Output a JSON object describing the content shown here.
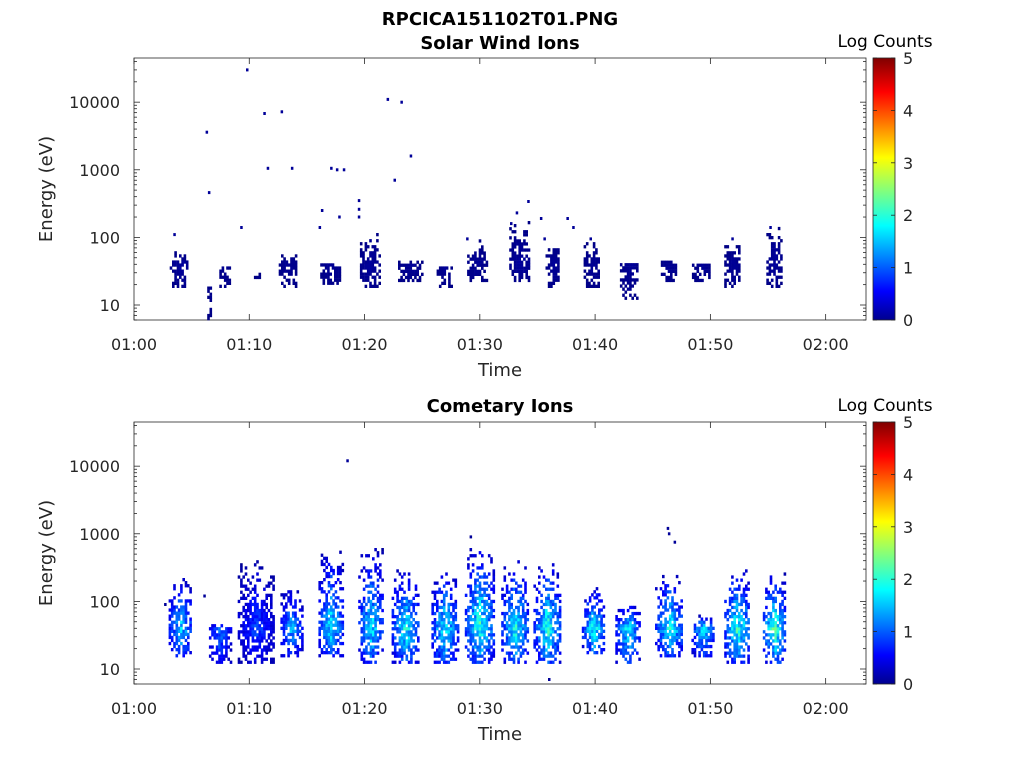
{
  "figure_title": "RPCICA151102T01.PNG",
  "chart_data": [
    {
      "type": "heatmap",
      "title": "Solar Wind Ions",
      "xlabel": "Time",
      "ylabel": "Energy (eV)",
      "x_ticks": [
        "01:00",
        "01:10",
        "01:20",
        "01:30",
        "01:40",
        "01:50",
        "02:00"
      ],
      "y_ticks": [
        "10",
        "100",
        "1000",
        "10000"
      ],
      "y_scale": "log",
      "ylim": [
        6,
        45000
      ],
      "xlim_minutes": [
        0,
        63.5
      ],
      "colorbar": {
        "label": "Log Counts",
        "ticks": [
          "0",
          "1",
          "2",
          "3",
          "4",
          "5"
        ],
        "range": [
          0,
          5
        ],
        "colormap": "jet"
      },
      "clusters": [
        {
          "t": 3.9,
          "w": 1.6,
          "lo": 18,
          "hi": 60,
          "peak": 0.15
        },
        {
          "t": 6.5,
          "w": 0.3,
          "lo": 6,
          "hi": 18,
          "peak": 0.1
        },
        {
          "t": 7.8,
          "w": 0.8,
          "lo": 18,
          "hi": 35,
          "peak": 0.12
        },
        {
          "t": 10.6,
          "w": 0.4,
          "lo": 22,
          "hi": 28,
          "peak": 0.1
        },
        {
          "t": 13.3,
          "w": 1.5,
          "lo": 18,
          "hi": 55,
          "peak": 0.12
        },
        {
          "t": 17.0,
          "w": 1.7,
          "lo": 20,
          "hi": 40,
          "peak": 0.12
        },
        {
          "t": 20.4,
          "w": 1.6,
          "lo": 18,
          "hi": 120,
          "peak": 0.15
        },
        {
          "t": 23.9,
          "w": 2.0,
          "lo": 22,
          "hi": 42,
          "peak": 0.12
        },
        {
          "t": 26.9,
          "w": 1.3,
          "lo": 18,
          "hi": 35,
          "peak": 0.12
        },
        {
          "t": 29.7,
          "w": 1.6,
          "lo": 22,
          "hi": 90,
          "peak": 0.12
        },
        {
          "t": 33.4,
          "w": 1.7,
          "lo": 22,
          "hi": 180,
          "peak": 0.15
        },
        {
          "t": 36.3,
          "w": 1.2,
          "lo": 18,
          "hi": 80,
          "peak": 0.12
        },
        {
          "t": 39.7,
          "w": 1.4,
          "lo": 18,
          "hi": 80,
          "peak": 0.12
        },
        {
          "t": 42.9,
          "w": 1.5,
          "lo": 12,
          "hi": 40,
          "peak": 0.12
        },
        {
          "t": 46.3,
          "w": 1.6,
          "lo": 22,
          "hi": 45,
          "peak": 0.12
        },
        {
          "t": 49.2,
          "w": 1.6,
          "lo": 22,
          "hi": 40,
          "peak": 0.12
        },
        {
          "t": 51.9,
          "w": 1.4,
          "lo": 18,
          "hi": 80,
          "peak": 0.12
        },
        {
          "t": 55.5,
          "w": 1.3,
          "lo": 18,
          "hi": 140,
          "peak": 0.15
        }
      ],
      "points": [
        {
          "t": 9.8,
          "e": 30000
        },
        {
          "t": 11.3,
          "e": 6800
        },
        {
          "t": 12.8,
          "e": 7200
        },
        {
          "t": 22.0,
          "e": 11000
        },
        {
          "t": 23.2,
          "e": 10000
        },
        {
          "t": 6.3,
          "e": 3600
        },
        {
          "t": 11.6,
          "e": 1050
        },
        {
          "t": 13.7,
          "e": 1050
        },
        {
          "t": 17.1,
          "e": 1050
        },
        {
          "t": 17.6,
          "e": 1000
        },
        {
          "t": 18.2,
          "e": 1000
        },
        {
          "t": 22.6,
          "e": 700
        },
        {
          "t": 24.0,
          "e": 1600
        },
        {
          "t": 6.5,
          "e": 460
        },
        {
          "t": 9.3,
          "e": 140
        },
        {
          "t": 3.5,
          "e": 110
        },
        {
          "t": 16.3,
          "e": 250
        },
        {
          "t": 17.8,
          "e": 200
        },
        {
          "t": 19.5,
          "e": 350
        },
        {
          "t": 19.5,
          "e": 260
        },
        {
          "t": 19.5,
          "e": 200
        },
        {
          "t": 33.2,
          "e": 230
        },
        {
          "t": 34.2,
          "e": 340
        },
        {
          "t": 35.3,
          "e": 190
        },
        {
          "t": 37.6,
          "e": 190
        },
        {
          "t": 28.9,
          "e": 95
        },
        {
          "t": 39.6,
          "e": 95
        },
        {
          "t": 51.9,
          "e": 95
        },
        {
          "t": 55.2,
          "e": 140
        },
        {
          "t": 16.1,
          "e": 140
        },
        {
          "t": 32.7,
          "e": 160
        },
        {
          "t": 38.1,
          "e": 140
        },
        {
          "t": 35.6,
          "e": 95
        }
      ]
    },
    {
      "type": "heatmap",
      "title": "Cometary Ions",
      "xlabel": "Time",
      "ylabel": "Energy (eV)",
      "x_ticks": [
        "01:00",
        "01:10",
        "01:20",
        "01:30",
        "01:40",
        "01:50",
        "02:00"
      ],
      "y_ticks": [
        "10",
        "100",
        "1000",
        "10000"
      ],
      "y_scale": "log",
      "ylim": [
        6,
        45000
      ],
      "xlim_minutes": [
        0,
        63.5
      ],
      "colorbar": {
        "label": "Log Counts",
        "ticks": [
          "0",
          "1",
          "2",
          "3",
          "4",
          "5"
        ],
        "range": [
          0,
          5
        ],
        "colormap": "jet"
      },
      "clusters": [
        {
          "t": 4.0,
          "w": 2.0,
          "lo": 15,
          "hi": 220,
          "peak": 1.7
        },
        {
          "t": 7.4,
          "w": 1.8,
          "lo": 12,
          "hi": 45,
          "peak": 1.3
        },
        {
          "t": 10.5,
          "w": 3.0,
          "lo": 12,
          "hi": 420,
          "peak": 1.0
        },
        {
          "t": 13.6,
          "w": 1.8,
          "lo": 15,
          "hi": 160,
          "peak": 1.6
        },
        {
          "t": 17.0,
          "w": 2.0,
          "lo": 15,
          "hi": 520,
          "peak": 1.9
        },
        {
          "t": 20.5,
          "w": 2.1,
          "lo": 12,
          "hi": 560,
          "peak": 1.9
        },
        {
          "t": 23.5,
          "w": 2.3,
          "lo": 12,
          "hi": 300,
          "peak": 2.0
        },
        {
          "t": 26.9,
          "w": 2.2,
          "lo": 12,
          "hi": 260,
          "peak": 2.0
        },
        {
          "t": 29.9,
          "w": 2.4,
          "lo": 12,
          "hi": 620,
          "peak": 2.2
        },
        {
          "t": 33.0,
          "w": 2.3,
          "lo": 12,
          "hi": 380,
          "peak": 2.0
        },
        {
          "t": 35.8,
          "w": 2.3,
          "lo": 12,
          "hi": 400,
          "peak": 2.1
        },
        {
          "t": 39.8,
          "w": 1.9,
          "lo": 15,
          "hi": 170,
          "peak": 2.0
        },
        {
          "t": 42.8,
          "w": 2.1,
          "lo": 12,
          "hi": 90,
          "peak": 1.9
        },
        {
          "t": 46.4,
          "w": 2.4,
          "lo": 15,
          "hi": 240,
          "peak": 2.0
        },
        {
          "t": 49.3,
          "w": 1.9,
          "lo": 15,
          "hi": 60,
          "peak": 1.8
        },
        {
          "t": 52.3,
          "w": 2.2,
          "lo": 12,
          "hi": 300,
          "peak": 2.2
        },
        {
          "t": 55.5,
          "w": 1.9,
          "lo": 12,
          "hi": 250,
          "peak": 2.3
        }
      ],
      "points": [
        {
          "t": 18.5,
          "e": 12000
        },
        {
          "t": 29.2,
          "e": 900
        },
        {
          "t": 46.3,
          "e": 1200
        },
        {
          "t": 46.4,
          "e": 1000
        },
        {
          "t": 46.9,
          "e": 750
        },
        {
          "t": 36.0,
          "e": 7
        },
        {
          "t": 6.1,
          "e": 120
        },
        {
          "t": 2.7,
          "e": 90
        }
      ]
    }
  ]
}
